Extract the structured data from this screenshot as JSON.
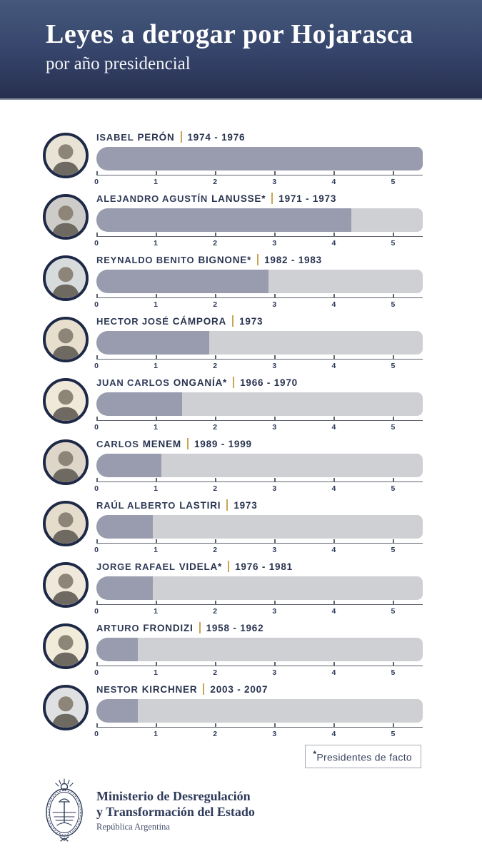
{
  "header": {
    "title": "Leyes a derogar por Hojarasca",
    "subtitle": "por año presidencial"
  },
  "chart_data": {
    "type": "bar",
    "title": "Leyes a derogar por Hojarasca",
    "subtitle": "por año presidencial",
    "xlabel": "",
    "ylabel": "",
    "axis": {
      "ticks": [
        0,
        1,
        2,
        3,
        4,
        5
      ],
      "max": 5.5,
      "grid": false
    },
    "bar_fill_color": "#989cae",
    "bar_track_color": "#cfd0d4",
    "rows": [
      {
        "first": "ISABEL",
        "last": "PERÓN",
        "years": "1974 - 1976",
        "value": 5.5,
        "avatar_bg": "#e9e3d5"
      },
      {
        "first": "ALEJANDRO AGUSTÍN",
        "last": "LANUSSE*",
        "years": "1971 - 1973",
        "value": 4.3,
        "avatar_bg": "#cdccc8"
      },
      {
        "first": "REYNALDO BENITO",
        "last": "BIGNONE*",
        "years": "1982 - 1983",
        "value": 2.9,
        "avatar_bg": "#d8dbdc"
      },
      {
        "first": "HECTOR JOSÉ",
        "last": "CÁMPORA",
        "years": "1973",
        "value": 1.9,
        "avatar_bg": "#e8decd"
      },
      {
        "first": "JUAN CARLOS",
        "last": "ONGANÍA*",
        "years": "1966 - 1970",
        "value": 1.45,
        "avatar_bg": "#f0e8d8"
      },
      {
        "first": "CARLOS",
        "last": "MENEM",
        "years": "1989 - 1999",
        "value": 1.1,
        "avatar_bg": "#ded6c8"
      },
      {
        "first": "RAÚL ALBERTO",
        "last": "LASTIRI",
        "years": "1973",
        "value": 0.95,
        "avatar_bg": "#e5dccb"
      },
      {
        "first": "JORGE RAFAEL",
        "last": "VIDELA*",
        "years": "1976 - 1981",
        "value": 0.95,
        "avatar_bg": "#f0e9db"
      },
      {
        "first": "ARTURO",
        "last": "FRONDIZI",
        "years": "1958 - 1962",
        "value": 0.7,
        "avatar_bg": "#f1ebda"
      },
      {
        "first": "NESTOR",
        "last": "KIRCHNER",
        "years": "2003 - 2007",
        "value": 0.7,
        "avatar_bg": "#dfe0e2"
      }
    ]
  },
  "legend": {
    "asterisk": "*",
    "note": "Presidentes de facto"
  },
  "footer": {
    "ministry_line1": "Ministerio de Desregulación",
    "ministry_line2": "y Transformación del Estado",
    "country": "República Argentina"
  },
  "colors": {
    "header_top": "#45597c",
    "header_bottom": "#272f4e",
    "text_navy": "#28334f",
    "divider_gold": "#c9a455",
    "avatar_ring": "#1e2947"
  }
}
